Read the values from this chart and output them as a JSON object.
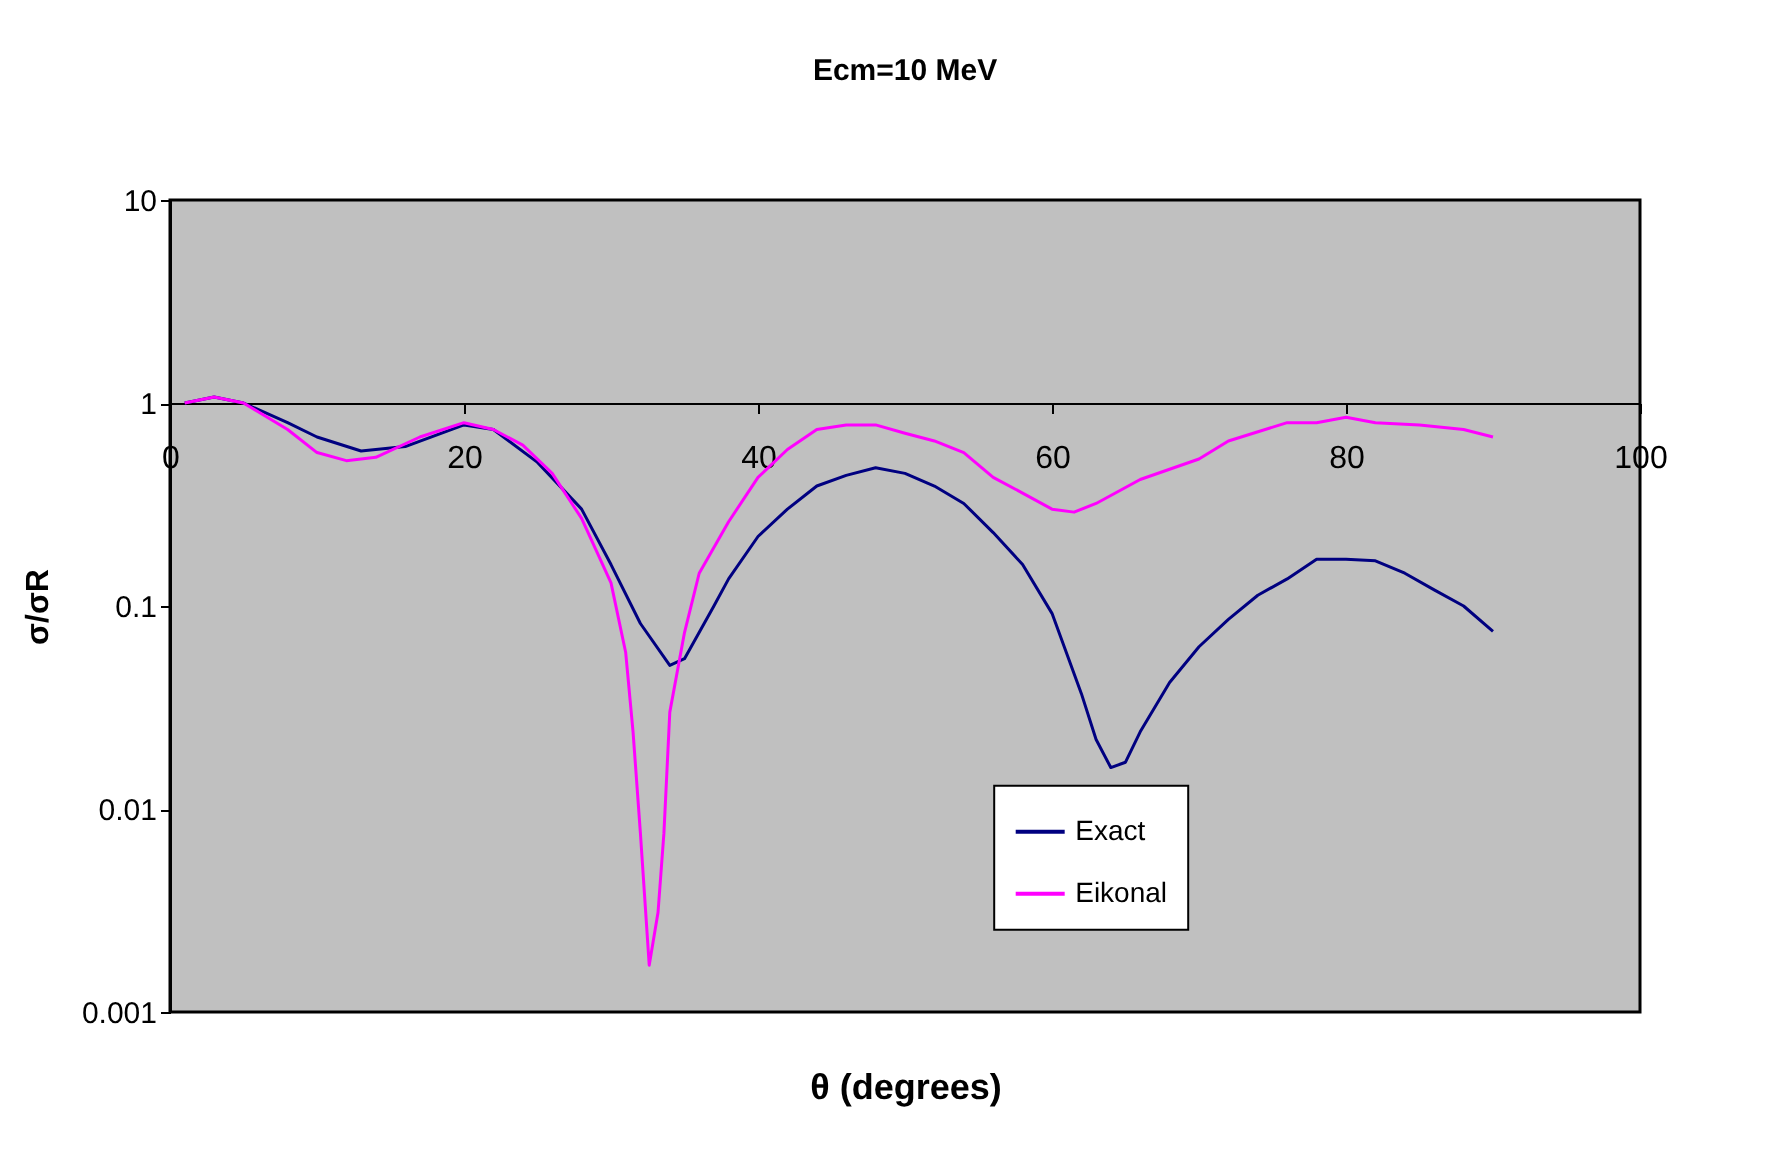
{
  "chart_data": {
    "type": "line",
    "title": "Ecm=10 MeV",
    "xlabel": "θ (degrees)",
    "ylabel": "σ/σR",
    "log": "y",
    "grid": false,
    "legend": "bottom",
    "marker": "none",
    "line_style": "solid",
    "xlim": [
      0,
      100
    ],
    "xticks": [
      0,
      20,
      40,
      60,
      80,
      100
    ],
    "ylim": [
      0.001,
      10
    ],
    "yticks": [
      0.001,
      0.01,
      0.1,
      1,
      10
    ],
    "series": [
      {
        "name": "Exact",
        "color": "#000080",
        "x": [
          1,
          3,
          5,
          8,
          10,
          13,
          16,
          20,
          22,
          25,
          28,
          30,
          32,
          34,
          35,
          37,
          38,
          40,
          42,
          44,
          46,
          48,
          50,
          52,
          54,
          56,
          58,
          60,
          62,
          63,
          64,
          65,
          66,
          68,
          70,
          72,
          74,
          76,
          78,
          80,
          82,
          84,
          86,
          88,
          90
        ],
        "values": [
          1.0,
          1.07,
          1.0,
          0.8,
          0.68,
          0.58,
          0.61,
          0.78,
          0.74,
          0.51,
          0.3,
          0.16,
          0.082,
          0.051,
          0.055,
          0.1,
          0.136,
          0.22,
          0.3,
          0.39,
          0.44,
          0.48,
          0.45,
          0.39,
          0.32,
          0.23,
          0.16,
          0.092,
          0.037,
          0.022,
          0.016,
          0.017,
          0.024,
          0.042,
          0.063,
          0.086,
          0.113,
          0.136,
          0.17,
          0.17,
          0.167,
          0.145,
          0.12,
          0.1,
          0.075
        ]
      },
      {
        "name": "Eikonal",
        "color": "#ff00ff",
        "x": [
          1,
          3,
          5,
          8,
          10,
          12,
          14,
          17,
          20,
          22,
          24,
          26,
          28,
          30,
          31,
          31.5,
          32,
          32.6,
          33.2,
          33.6,
          34,
          35,
          36,
          38,
          40,
          42,
          44,
          46,
          48,
          50,
          52,
          54,
          56,
          58,
          60,
          61.5,
          63,
          66,
          70,
          72,
          76,
          78,
          80,
          82,
          85,
          88,
          90
        ],
        "values": [
          1.0,
          1.07,
          1.0,
          0.74,
          0.57,
          0.52,
          0.54,
          0.68,
          0.8,
          0.74,
          0.62,
          0.45,
          0.27,
          0.13,
          0.059,
          0.024,
          0.0076,
          0.0017,
          0.0031,
          0.0076,
          0.03,
          0.074,
          0.145,
          0.26,
          0.43,
          0.59,
          0.74,
          0.78,
          0.78,
          0.71,
          0.65,
          0.57,
          0.43,
          0.36,
          0.3,
          0.29,
          0.32,
          0.42,
          0.53,
          0.65,
          0.8,
          0.8,
          0.85,
          0.8,
          0.78,
          0.74,
          0.68
        ]
      }
    ]
  }
}
